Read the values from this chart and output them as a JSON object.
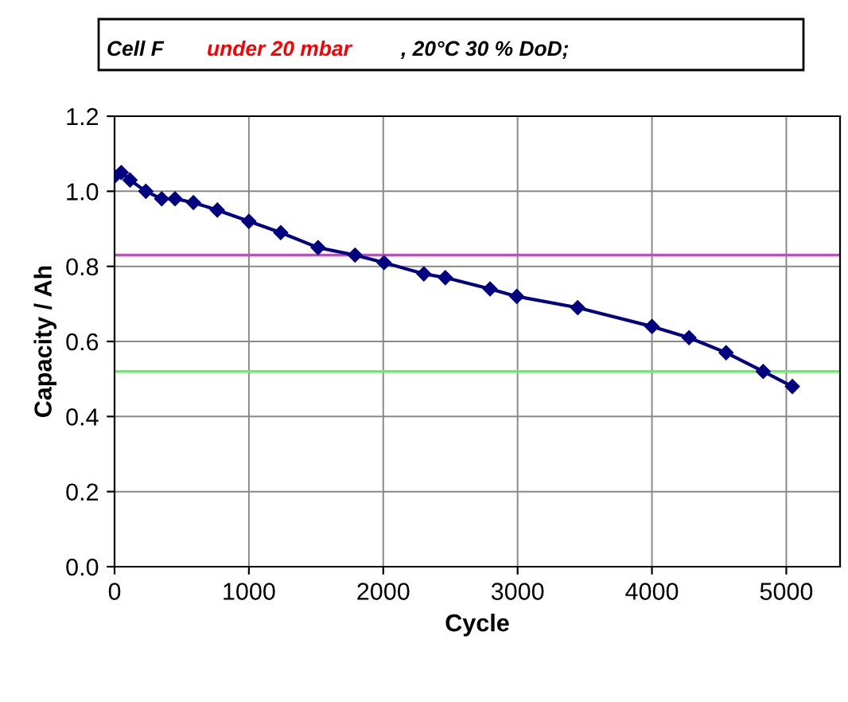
{
  "chart_data": {
    "type": "line",
    "title": "Cell F",
    "subtitle": "under 20 mbar",
    "annotations": [
      ", 20°C 30 % DoD;"
    ],
    "xlabel": "Cycle",
    "ylabel": "Capacity / Ah",
    "x": [
      0,
      50,
      115,
      233,
      351,
      450,
      587,
      765,
      1000,
      1237,
      1515,
      1790,
      2006,
      2302,
      2462,
      2795,
      2994,
      3447,
      4000,
      4276,
      4552,
      4828,
      5045
    ],
    "series": [
      {
        "color": "#000080",
        "values": [
          1.04,
          1.05,
          1.03,
          1.0,
          0.98,
          0.98,
          0.97,
          0.95,
          0.92,
          0.89,
          0.85,
          0.83,
          0.81,
          0.78,
          0.77,
          0.74,
          0.72,
          0.69,
          0.64,
          0.61,
          0.57,
          0.52,
          0.48
        ]
      }
    ],
    "xlim": [
      0,
      5400
    ],
    "xticks": [
      0,
      1000,
      2000,
      3000,
      4000,
      5000
    ],
    "ylim": [
      0,
      1.2
    ],
    "yticks": [
      {
        "value": 0,
        "label": "0.0"
      },
      0.2,
      0.4,
      0.6,
      0.8,
      {
        "value": 1,
        "label": "1.0"
      },
      1.2
    ],
    "ref_lines": [
      {
        "axis": "y",
        "value": 0.83,
        "color": "#cc44cc"
      },
      {
        "axis": "y",
        "value": 0.52,
        "color": "#66ee66"
      }
    ],
    "grid": true,
    "marker": "diamond",
    "line_style": "solid",
    "legend": false
  }
}
